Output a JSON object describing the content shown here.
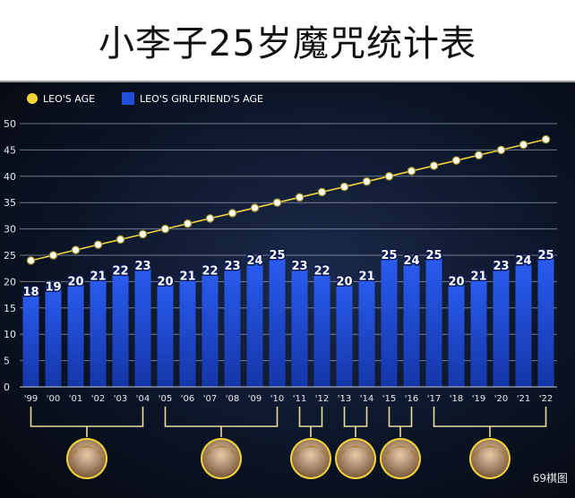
{
  "header": {
    "title": "小李子25岁魔咒统计表"
  },
  "chart_data": {
    "type": "bar",
    "title": "小李子25岁魔咒统计表",
    "categories": [
      "'99",
      "'00",
      "'01",
      "'02",
      "'03",
      "'04",
      "'05",
      "'06",
      "'07",
      "'08",
      "'09",
      "'10",
      "'11",
      "'12",
      "'13",
      "'14",
      "'15",
      "'16",
      "'17",
      "'18",
      "'19",
      "'20",
      "'21",
      "'22"
    ],
    "ylim": [
      0,
      50
    ],
    "yticks": [
      0,
      5,
      10,
      15,
      20,
      25,
      30,
      35,
      40,
      45,
      50
    ],
    "grid": true,
    "legend_placement": "top-left",
    "series": [
      {
        "name": "LEO'S AGE",
        "kind": "line",
        "color": "#f2d43a",
        "values": [
          24,
          25,
          26,
          27,
          28,
          29,
          30,
          31,
          32,
          33,
          34,
          35,
          36,
          37,
          38,
          39,
          40,
          41,
          42,
          43,
          44,
          45,
          46,
          47
        ]
      },
      {
        "name": "LEO'S GIRLFRIEND'S AGE",
        "kind": "bar",
        "color": "#1f4fd8",
        "values": [
          18,
          19,
          20,
          21,
          22,
          23,
          20,
          21,
          22,
          23,
          24,
          25,
          23,
          22,
          20,
          21,
          25,
          24,
          25,
          20,
          21,
          23,
          24,
          25
        ]
      }
    ],
    "girlfriend_groups": [
      [
        0,
        5
      ],
      [
        6,
        11
      ],
      [
        12,
        13
      ],
      [
        14,
        15
      ],
      [
        16,
        17
      ],
      [
        18,
        23
      ]
    ]
  },
  "watermark": "69棋图"
}
